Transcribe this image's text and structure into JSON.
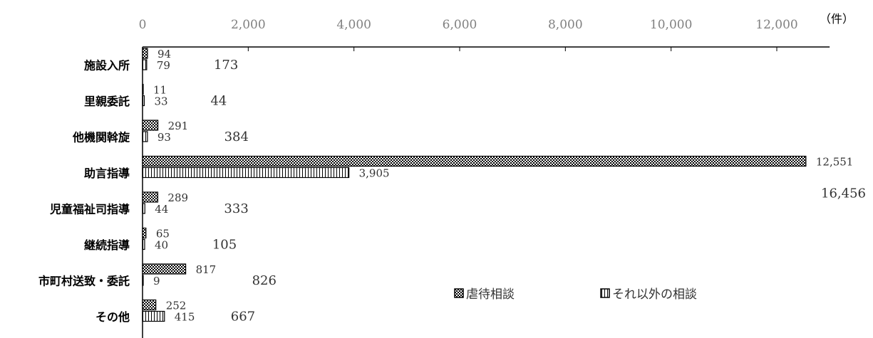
{
  "chart_data": {
    "type": "bar",
    "orientation": "horizontal",
    "stacked": false,
    "categories": [
      "施設入所",
      "里親委託",
      "他機関斡旋",
      "助言指導",
      "児童福祉司指導",
      "継続指導",
      "市町村送致・委託",
      "その他"
    ],
    "series": [
      {
        "name": "虐待相談",
        "values": [
          94,
          11,
          291,
          12551,
          289,
          65,
          817,
          252
        ],
        "value_labels": [
          "94",
          "11",
          "291",
          "12,551",
          "289",
          "65",
          "817",
          "252"
        ],
        "pattern": "checker"
      },
      {
        "name": "それ以外の相談",
        "values": [
          79,
          33,
          93,
          3905,
          44,
          40,
          9,
          415
        ],
        "value_labels": [
          "79",
          "33",
          "93",
          "3,905",
          "44",
          "40",
          "9",
          "415"
        ],
        "pattern": "vertical-lines"
      }
    ],
    "totals": [
      173,
      44,
      384,
      16456,
      333,
      105,
      826,
      667
    ],
    "total_labels": [
      "173",
      "44",
      "384",
      "16,456",
      "333",
      "105",
      "826",
      "667"
    ],
    "xlim": [
      0,
      13000
    ],
    "x_ticks": [
      0,
      2000,
      4000,
      6000,
      8000,
      10000,
      12000
    ],
    "x_tick_labels": [
      "0",
      "2,000",
      "4,000",
      "6,000",
      "8,000",
      "10,000",
      "12,000"
    ],
    "x_axis_position": "top",
    "unit_label": "（件）",
    "grid": false,
    "legend_position": "bottom-right",
    "colors": {
      "bar_fill": "#ffffff",
      "bar_stroke": "#000000",
      "pattern_dark": "#000000",
      "tick_color": "#808080",
      "text": "#333333"
    }
  }
}
